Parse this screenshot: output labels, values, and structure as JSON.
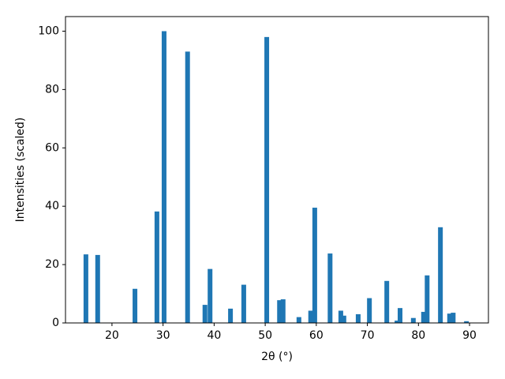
{
  "chart_data": {
    "type": "bar",
    "x": [
      14.9,
      17.2,
      24.5,
      28.8,
      30.2,
      34.8,
      38.2,
      39.2,
      43.2,
      45.8,
      50.3,
      52.8,
      53.5,
      56.6,
      58.9,
      59.7,
      62.7,
      64.8,
      65.4,
      68.2,
      70.4,
      73.8,
      75.8,
      76.4,
      79.0,
      81.0,
      81.7,
      84.3,
      86.1,
      86.8,
      89.4
    ],
    "values": [
      23.5,
      23.3,
      11.7,
      38.2,
      100,
      93,
      6.2,
      18.5,
      4.9,
      13.1,
      98,
      7.8,
      8.1,
      2,
      4.2,
      39.5,
      23.8,
      4.2,
      2.5,
      3,
      8.5,
      14.4,
      0.8,
      5.1,
      1.7,
      3.8,
      16.3,
      32.8,
      3.2,
      3.5,
      0.6
    ],
    "color": "#1f77b4",
    "xlabel": "2θ (°)",
    "ylabel": "Intensities (scaled)",
    "xlim": [
      10.9,
      93.7
    ],
    "xticks": [
      20,
      30,
      40,
      50,
      60,
      70,
      80,
      90
    ],
    "ylim": [
      0,
      105
    ],
    "yticks": [
      0,
      20,
      40,
      60,
      80,
      100
    ]
  }
}
